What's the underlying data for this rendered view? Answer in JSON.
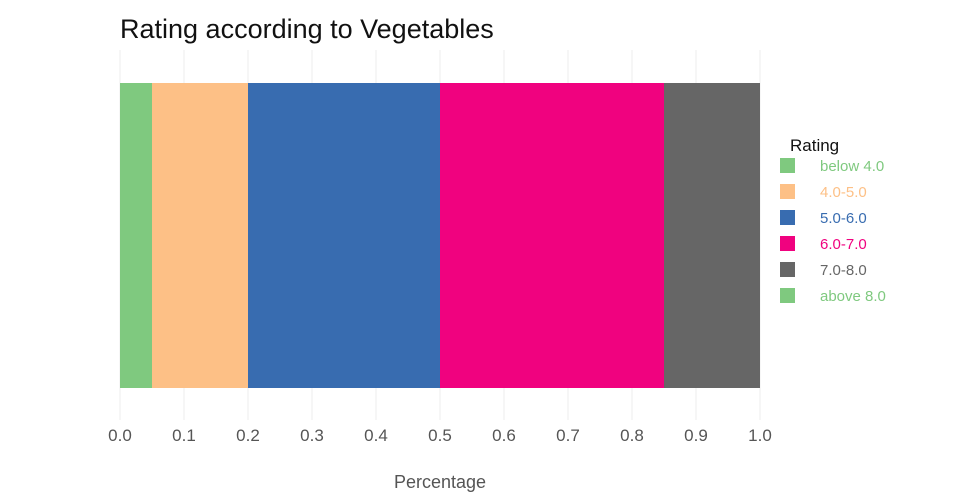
{
  "chart_data": {
    "type": "bar",
    "orientation": "horizontal",
    "stacked": true,
    "title": "Rating according to Vegetables",
    "xlabel": "Percentage",
    "ylabel": "",
    "xlim": [
      0,
      1
    ],
    "x_ticks": [
      "0.0",
      "0.1",
      "0.2",
      "0.3",
      "0.4",
      "0.5",
      "0.6",
      "0.7",
      "0.8",
      "0.9",
      "1.0"
    ],
    "grid": true,
    "legend": {
      "title": "Rating",
      "position": "right"
    },
    "series": [
      {
        "name": "below 4.0",
        "value": 0.05,
        "color": "#7fc97f"
      },
      {
        "name": "4.0-5.0",
        "value": 0.15,
        "color": "#fdc086"
      },
      {
        "name": "5.0-6.0",
        "value": 0.3,
        "color": "#386cb0"
      },
      {
        "name": "6.0-7.0",
        "value": 0.35,
        "color": "#f0027f"
      },
      {
        "name": "7.0-8.0",
        "value": 0.15,
        "color": "#666666"
      },
      {
        "name": "above 8.0",
        "value": 0.0,
        "color": "#7fc97f"
      }
    ]
  }
}
